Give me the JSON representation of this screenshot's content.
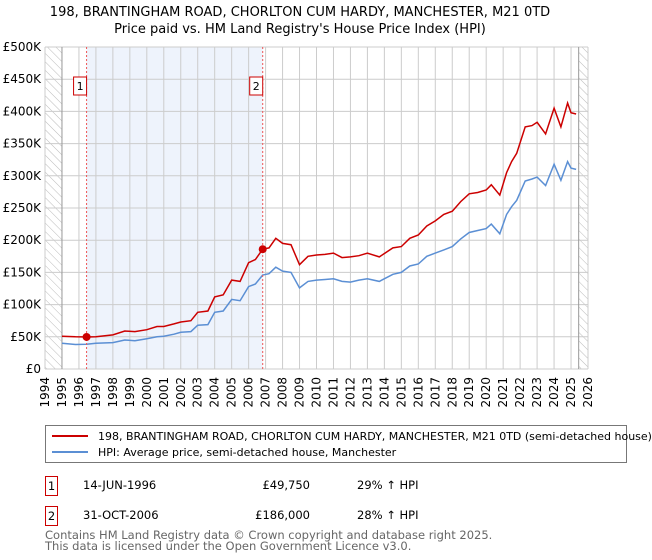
{
  "title": "198, BRANTINGHAM ROAD, CHORLTON CUM HARDY, MANCHESTER, M21 0TD",
  "subtitle": "Price paid vs. HM Land Registry's House Price Index (HPI)",
  "chart_data": {
    "type": "line",
    "xlim": [
      1994,
      2026
    ],
    "ylim": [
      0,
      500000
    ],
    "x_ticks": [
      "1994",
      "1995",
      "1996",
      "1997",
      "1998",
      "1999",
      "2000",
      "2001",
      "2002",
      "2003",
      "2004",
      "2005",
      "2006",
      "2007",
      "2008",
      "2009",
      "2010",
      "2011",
      "2012",
      "2013",
      "2014",
      "2015",
      "2016",
      "2017",
      "2018",
      "2019",
      "2020",
      "2021",
      "2022",
      "2023",
      "2024",
      "2025",
      "2026"
    ],
    "y_ticks": [
      {
        "v": 0,
        "label": "£0"
      },
      {
        "v": 50000,
        "label": "£50K"
      },
      {
        "v": 100000,
        "label": "£100K"
      },
      {
        "v": 150000,
        "label": "£150K"
      },
      {
        "v": 200000,
        "label": "£200K"
      },
      {
        "v": 250000,
        "label": "£250K"
      },
      {
        "v": 300000,
        "label": "£300K"
      },
      {
        "v": 350000,
        "label": "£350K"
      },
      {
        "v": 400000,
        "label": "£400K"
      },
      {
        "v": 450000,
        "label": "£450K"
      },
      {
        "v": 500000,
        "label": "£500K"
      }
    ],
    "series": [
      {
        "name": "198, BRANTINGHAM ROAD, CHORLTON CUM HARDY, MANCHESTER, M21 0TD (semi-detached house)",
        "color": "#cc0000",
        "x": [
          1995,
          1995.8,
          1996.45,
          1997,
          1998,
          1998.7,
          1999.3,
          2000,
          2000.6,
          2001,
          2001.6,
          2002,
          2002.6,
          2003,
          2003.6,
          2004,
          2004.5,
          2005,
          2005.5,
          2006,
          2006.4,
          2006.83,
          2007.2,
          2007.6,
          2008,
          2008.5,
          2009,
          2009.5,
          2010,
          2010.5,
          2011,
          2011.5,
          2012,
          2012.5,
          2013,
          2013.7,
          2014.5,
          2015,
          2015.5,
          2016,
          2016.5,
          2017,
          2017.5,
          2018,
          2018.5,
          2019,
          2019.5,
          2020,
          2020.3,
          2020.8,
          2021.2,
          2021.5,
          2021.8,
          2022.3,
          2022.7,
          2023,
          2023.5,
          2024,
          2024.4,
          2024.8,
          2025,
          2025.3
        ],
        "y": [
          51000,
          50000,
          49750,
          50000,
          53000,
          59000,
          58000,
          61000,
          66000,
          66000,
          70000,
          73000,
          75000,
          88000,
          90000,
          112000,
          115000,
          138000,
          136000,
          165000,
          170000,
          186000,
          188000,
          203000,
          195000,
          193000,
          162000,
          175000,
          177000,
          178000,
          180000,
          173000,
          174000,
          176000,
          180000,
          174000,
          188000,
          190000,
          203000,
          208000,
          222000,
          230000,
          240000,
          245000,
          260000,
          272000,
          274000,
          278000,
          286000,
          270000,
          305000,
          322000,
          335000,
          376000,
          378000,
          383000,
          365000,
          405000,
          376000,
          413000,
          398000,
          396000
        ]
      },
      {
        "name": "HPI: Average price, semi-detached house, Manchester",
        "color": "#5b8fd4",
        "x": [
          1995,
          1995.8,
          1996.45,
          1997,
          1998,
          1998.7,
          1999.3,
          2000,
          2000.6,
          2001,
          2001.6,
          2002,
          2002.6,
          2003,
          2003.6,
          2004,
          2004.5,
          2005,
          2005.5,
          2006,
          2006.4,
          2006.83,
          2007.2,
          2007.6,
          2008,
          2008.5,
          2009,
          2009.5,
          2010,
          2010.5,
          2011,
          2011.5,
          2012,
          2012.5,
          2013,
          2013.7,
          2014.5,
          2015,
          2015.5,
          2016,
          2016.5,
          2017,
          2017.5,
          2018,
          2018.5,
          2019,
          2019.5,
          2020,
          2020.3,
          2020.8,
          2021.2,
          2021.5,
          2021.8,
          2022.3,
          2022.7,
          2023,
          2023.5,
          2024,
          2024.4,
          2024.8,
          2025,
          2025.3
        ],
        "y": [
          40000,
          38000,
          38500,
          40000,
          41000,
          45000,
          44000,
          47000,
          50000,
          51000,
          54000,
          57000,
          58000,
          68000,
          69000,
          88000,
          90000,
          108000,
          106000,
          128000,
          132000,
          146000,
          148000,
          158000,
          152000,
          150000,
          126000,
          136000,
          138000,
          139000,
          140000,
          136000,
          135000,
          138000,
          140000,
          136000,
          147000,
          150000,
          160000,
          163000,
          175000,
          180000,
          185000,
          190000,
          202000,
          212000,
          215000,
          218000,
          225000,
          210000,
          240000,
          252000,
          262000,
          292000,
          295000,
          298000,
          285000,
          318000,
          293000,
          322000,
          312000,
          310000
        ]
      }
    ],
    "sales": [
      {
        "label": "1",
        "x": 1996.45,
        "y": 49750
      },
      {
        "label": "2",
        "x": 2006.83,
        "y": 186000
      }
    ],
    "grid": true,
    "legend_position": "bottom"
  },
  "legend": {
    "items": [
      {
        "label": "198, BRANTINGHAM ROAD, CHORLTON CUM HARDY, MANCHESTER, M21 0TD (semi-detached house)",
        "color": "#cc0000"
      },
      {
        "label": "HPI: Average price, semi-detached house, Manchester",
        "color": "#5b8fd4"
      }
    ]
  },
  "sales_table": [
    {
      "num": "1",
      "date": "14-JUN-1996",
      "price": "£49,750",
      "hpi": "29% ↑ HPI"
    },
    {
      "num": "2",
      "date": "31-OCT-2006",
      "price": "£186,000",
      "hpi": "28% ↑ HPI"
    }
  ],
  "footer": {
    "line1": "Contains HM Land Registry data © Crown copyright and database right 2025.",
    "line2": "This data is licensed under the Open Government Licence v3.0."
  }
}
